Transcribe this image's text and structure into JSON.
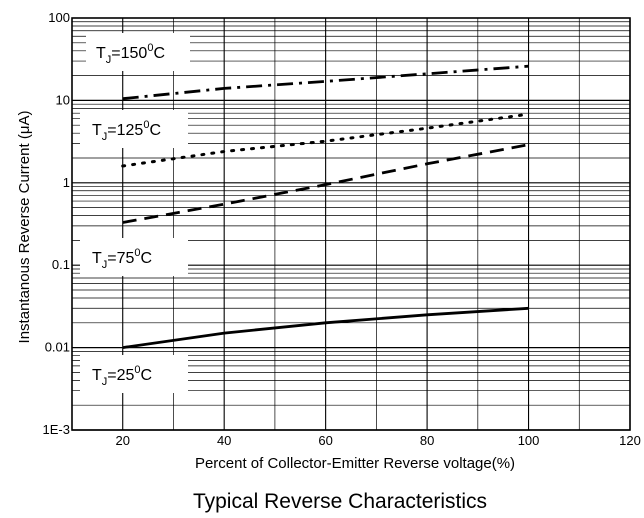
{
  "chart_data": {
    "type": "line",
    "title": "Typical Reverse Characteristics",
    "xlabel": "Percent of Collector-Emitter Reverse voltage(%)",
    "ylabel": "Instantanous Reverse Current (μA)",
    "xlim": [
      10,
      120
    ],
    "ylim": [
      0.001,
      100
    ],
    "yscale": "log",
    "grid": true,
    "x_ticks": [
      {
        "value": 20,
        "label": "20"
      },
      {
        "value": 40,
        "label": "40"
      },
      {
        "value": 60,
        "label": "60"
      },
      {
        "value": 80,
        "label": "80"
      },
      {
        "value": 100,
        "label": "100"
      },
      {
        "value": 120,
        "label": "120"
      }
    ],
    "y_ticks": [
      {
        "value": 100,
        "label": "100"
      },
      {
        "value": 10,
        "label": "10"
      },
      {
        "value": 1,
        "label": "1"
      },
      {
        "value": 0.1,
        "label": "0.1"
      },
      {
        "value": 0.01,
        "label": "0.01"
      },
      {
        "value": 0.001,
        "label": "1E-3"
      }
    ],
    "series": [
      {
        "x": [
          20,
          40,
          60,
          80,
          100
        ],
        "values": [
          10.5,
          14,
          17,
          21,
          26
        ],
        "dash": "dashdot"
      },
      {
        "x": [
          20,
          40,
          60,
          80,
          100
        ],
        "values": [
          1.6,
          2.4,
          3.2,
          4.6,
          6.8
        ],
        "dash": "dot"
      },
      {
        "x": [
          20,
          40,
          60,
          80,
          100
        ],
        "values": [
          0.33,
          0.55,
          0.95,
          1.7,
          2.9
        ],
        "dash": "dash"
      },
      {
        "x": [
          20,
          40,
          60,
          80,
          100
        ],
        "values": [
          0.01,
          0.015,
          0.02,
          0.025,
          0.03
        ],
        "dash": "solid"
      }
    ],
    "annotations": [
      {
        "text": "T",
        "sub": "J",
        "post": "=150",
        "sup": "0",
        "end": "C"
      },
      {
        "text": "T",
        "sub": "J",
        "post": "=125",
        "sup": "0",
        "end": "C"
      },
      {
        "text": "T",
        "sub": "J",
        "post": "=75",
        "sup": "0",
        "end": "C"
      },
      {
        "text": "T",
        "sub": "J",
        "post": "=25",
        "sup": "0",
        "end": "C"
      }
    ]
  }
}
